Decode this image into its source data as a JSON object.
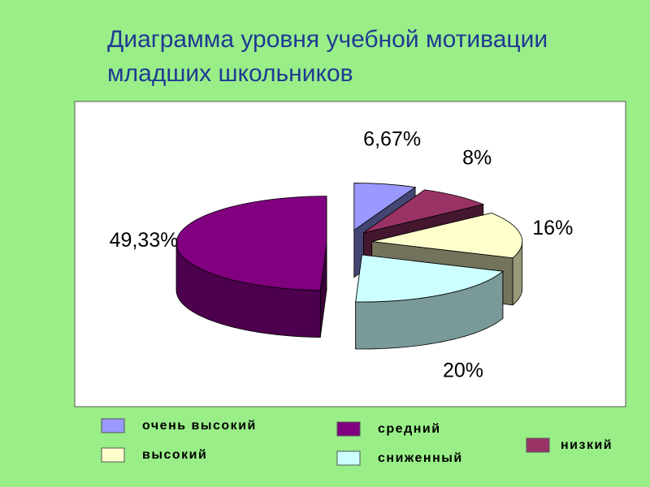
{
  "chart_data": {
    "type": "pie",
    "title": "Диаграмма уровня учебной мотивации младших школьников",
    "categories": [
      "очень высокий",
      "низкий",
      "высокий",
      "сниженный",
      "средний"
    ],
    "values": [
      6.67,
      8,
      16,
      20,
      49.33
    ],
    "value_labels": [
      "6,67%",
      "8%",
      "16%",
      "20%",
      "49,33%"
    ],
    "colors": [
      "#9999ff",
      "#993366",
      "#ffffcc",
      "#ccffff",
      "#800080"
    ]
  }
}
